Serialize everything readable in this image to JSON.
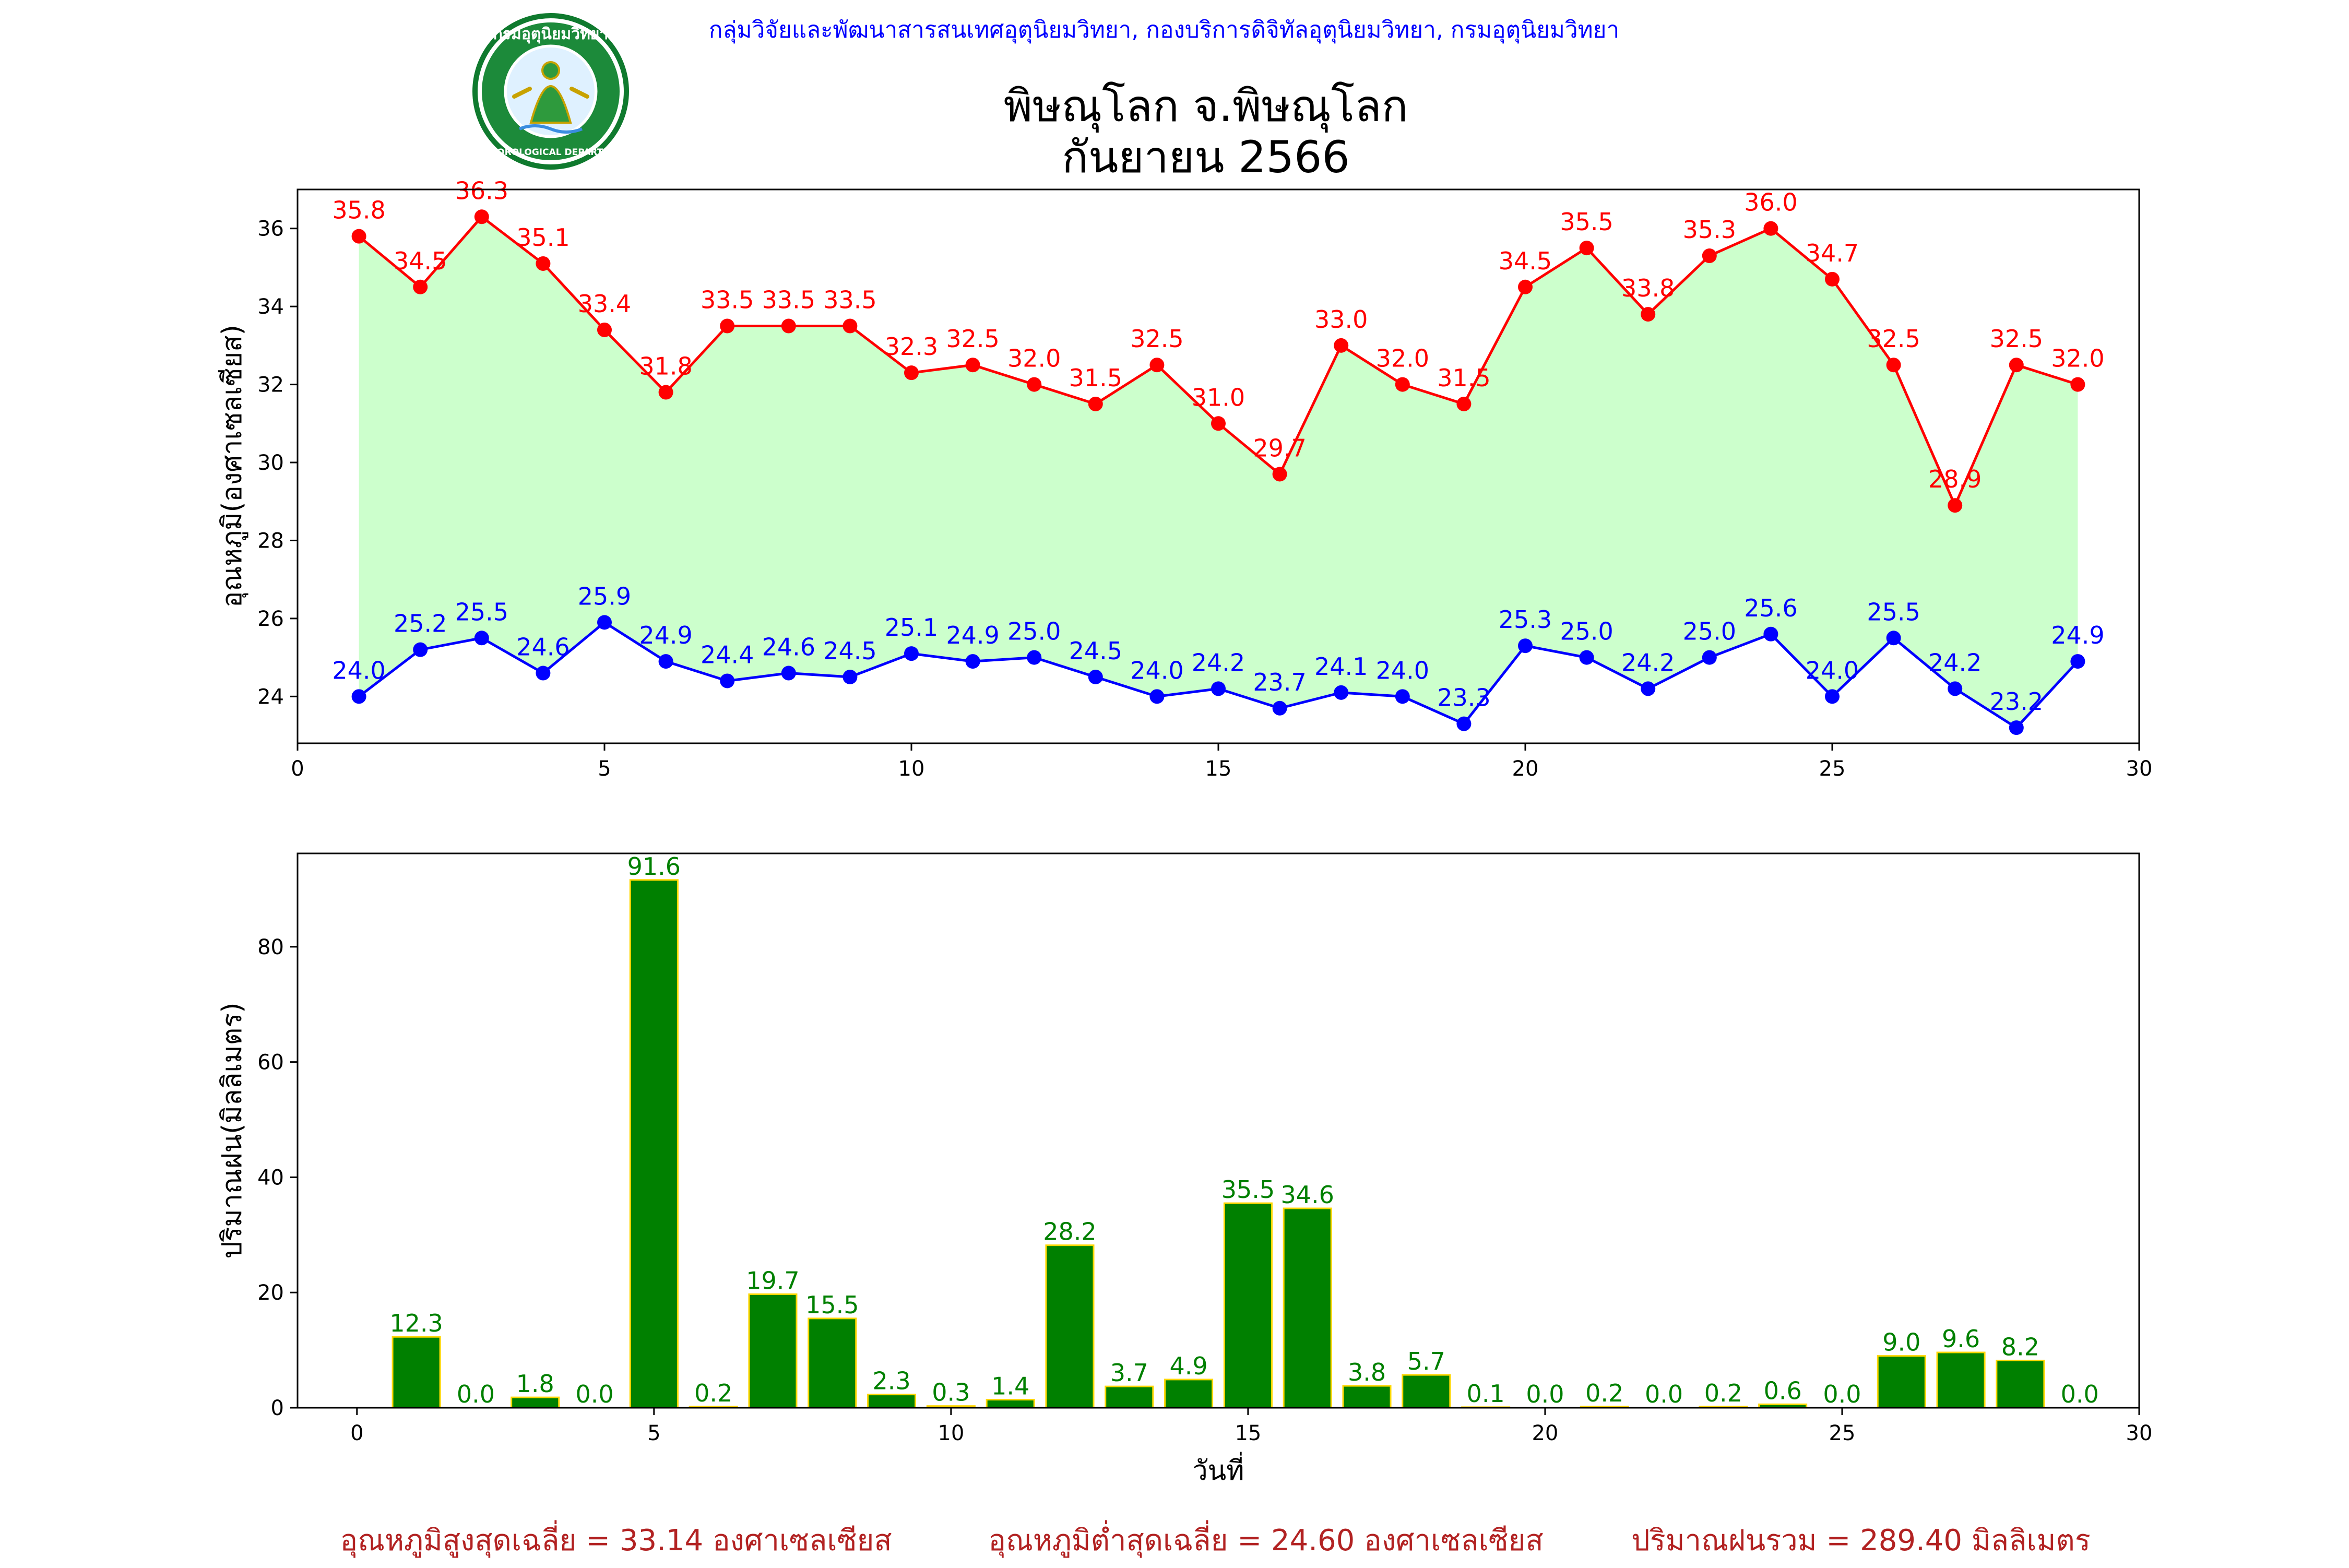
{
  "header": {
    "agency": "กลุ่มวิจัยและพัฒนาสารสนเทศอุตุนิยมวิทยา, กองบริการดิจิทัลอุตุนิยมวิทยา, กรมอุตุนิยมวิทยา",
    "title_line1": "พิษณุโลก จ.พิษณุโลก",
    "title_line2": "กันยายน 2566",
    "logo_text_top": "กรมอุตุนิยมวิทยา",
    "logo_text_bottom": "METEOROLOGICAL DEPARTMENT"
  },
  "colors": {
    "max": "#ff0000",
    "min": "#0000ff",
    "fill": "#ccffcc",
    "bar": "#008000",
    "bar_edge": "#ffd700",
    "header": "#0000ff",
    "footer": "#b22222"
  },
  "footer": {
    "avg_max": "อุณหภูมิสูงสุดเฉลี่ย = 33.14 องศาเซลเซียส",
    "avg_min": "อุณหภูมิต่ำสุดเฉลี่ย = 24.60 องศาเซลเซียส",
    "total_rain": "ปริมาณฝนรวม = 289.40 มิลลิเมตร"
  },
  "chart_data": [
    {
      "type": "line",
      "ylabel": "อุณหภูมิ(องศาเซลเซียส)",
      "xlim": [
        0,
        30
      ],
      "ylim": [
        22.8,
        37.0
      ],
      "xticks": [
        0,
        5,
        10,
        15,
        20,
        25,
        30
      ],
      "yticks": [
        24,
        26,
        28,
        30,
        32,
        34,
        36
      ],
      "x": [
        1,
        2,
        3,
        4,
        5,
        6,
        7,
        8,
        9,
        10,
        11,
        12,
        13,
        14,
        15,
        16,
        17,
        18,
        19,
        20,
        21,
        22,
        23,
        24,
        25,
        26,
        27,
        28,
        29
      ],
      "series": [
        {
          "key": "max",
          "values": [
            35.8,
            34.5,
            36.3,
            35.1,
            33.4,
            31.8,
            33.5,
            33.5,
            33.5,
            32.3,
            32.5,
            32.0,
            31.5,
            32.5,
            31.0,
            29.7,
            33.0,
            32.0,
            31.5,
            34.5,
            35.5,
            33.8,
            35.3,
            36.0,
            34.7,
            32.5,
            28.9,
            32.5,
            32.0
          ]
        },
        {
          "key": "min",
          "values": [
            24.0,
            25.2,
            25.5,
            24.6,
            25.9,
            24.9,
            24.4,
            24.6,
            24.5,
            25.1,
            24.9,
            25.0,
            24.5,
            24.0,
            24.2,
            23.7,
            24.1,
            24.0,
            23.3,
            25.3,
            25.0,
            24.2,
            25.0,
            25.6,
            24.0,
            25.5,
            24.2,
            23.2,
            24.9
          ]
        }
      ],
      "fill_between": true,
      "grid": false
    },
    {
      "type": "bar",
      "xlabel": "วันที่",
      "ylabel": "ปริมาณฝน(มิลลิเมตร)",
      "xlim": [
        -1,
        30
      ],
      "ylim": [
        0,
        96.2
      ],
      "xticks": [
        0,
        5,
        10,
        15,
        20,
        25,
        30
      ],
      "yticks": [
        0,
        20,
        40,
        60,
        80
      ],
      "x": [
        1,
        2,
        3,
        4,
        5,
        6,
        7,
        8,
        9,
        10,
        11,
        12,
        13,
        14,
        15,
        16,
        17,
        18,
        19,
        20,
        21,
        22,
        23,
        24,
        25,
        26,
        27,
        28,
        29
      ],
      "values": [
        12.3,
        0.0,
        1.8,
        0.0,
        91.6,
        0.2,
        19.7,
        15.5,
        2.3,
        0.3,
        1.4,
        28.2,
        3.7,
        4.9,
        35.5,
        34.6,
        3.8,
        5.7,
        0.1,
        0.0,
        0.2,
        0.0,
        0.2,
        0.6,
        0.0,
        9.0,
        9.6,
        8.2,
        0.0
      ],
      "grid": false
    }
  ]
}
